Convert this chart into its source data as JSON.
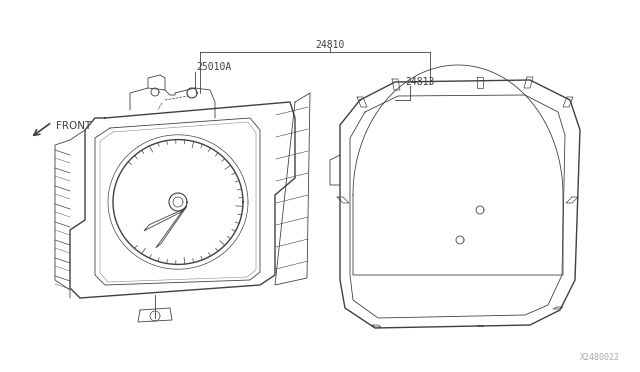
{
  "bg_color": "#ffffff",
  "lc": "#404040",
  "lc2": "#555555",
  "label_25010A": "25010A",
  "label_24810": "24810",
  "label_24813": "24813",
  "label_front": "FRONT",
  "label_watermark": "X2480022",
  "fig_width": 6.4,
  "fig_height": 3.72,
  "dpi": 100
}
